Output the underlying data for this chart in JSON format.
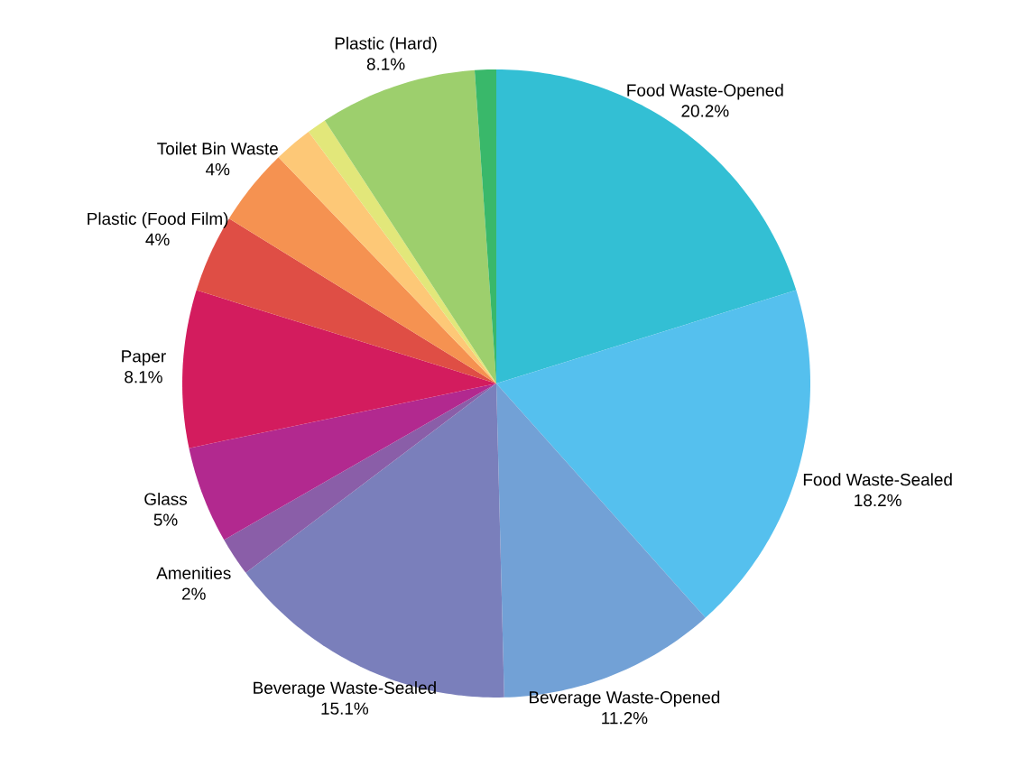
{
  "chart_data": {
    "type": "pie",
    "categories": [
      "Food Waste-Opened",
      "Food Waste-Sealed",
      "Beverage Waste-Opened",
      "Beverage Waste-Sealed",
      "Amenities",
      "Glass",
      "Paper",
      "Plastic (Food Film)",
      "Toilet Bin Waste",
      null,
      null,
      "Plastic (Hard)",
      null
    ],
    "values": [
      20.2,
      18.2,
      11.2,
      15.1,
      2,
      5,
      8.1,
      4,
      4,
      2,
      1,
      8.1,
      1.1
    ],
    "value_labels": [
      "20.2%",
      "18.2%",
      "11.2%",
      "15.1%",
      "2%",
      "5%",
      "8.1%",
      "4%",
      "4%",
      null,
      null,
      "8.1%",
      null
    ],
    "colors": [
      "#33bfd4",
      "#55c0ee",
      "#72a1d6",
      "#7a7fbb",
      "#8a5ea8",
      "#b2298f",
      "#d31c5e",
      "#df4e45",
      "#f59251",
      "#fdc877",
      "#e2e77a",
      "#9dcf6d",
      "#39b86a"
    ]
  }
}
